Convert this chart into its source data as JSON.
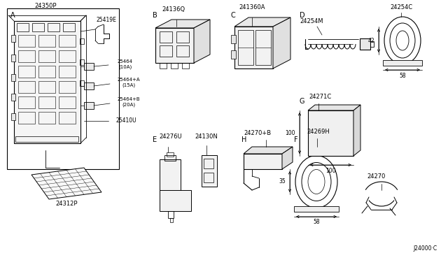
{
  "bg_color": "#ffffff",
  "part_number": "J24000·C",
  "components": {
    "A_label": "A",
    "A_part1": "24350P",
    "A_part2": "25419E",
    "A_part3": "25464\n(10A)",
    "A_part4": "25464+A\n(15A)",
    "A_part5": "25464+B\n(20A)",
    "A_part6": "25410U",
    "A_part7": "24312P",
    "B_label": "B",
    "B_part": "24136Q",
    "C_label": "C",
    "C_part": "241360A",
    "D_label": "D",
    "D_part1": "24254M",
    "D_part2": "24254C",
    "D_dim1": "42",
    "D_dim2": "58",
    "E_label": "E",
    "E_part": "24276U",
    "F_label": "F",
    "F_part": "24269H",
    "F_dim1": "35",
    "F_dim2": "58",
    "G_label": "G",
    "G_part": "24271C",
    "G_dim1": "100",
    "G_dim2": "100",
    "H_label": "H",
    "H_part": "24270+B",
    "N_part": "24130N",
    "extra_part": "24270"
  }
}
